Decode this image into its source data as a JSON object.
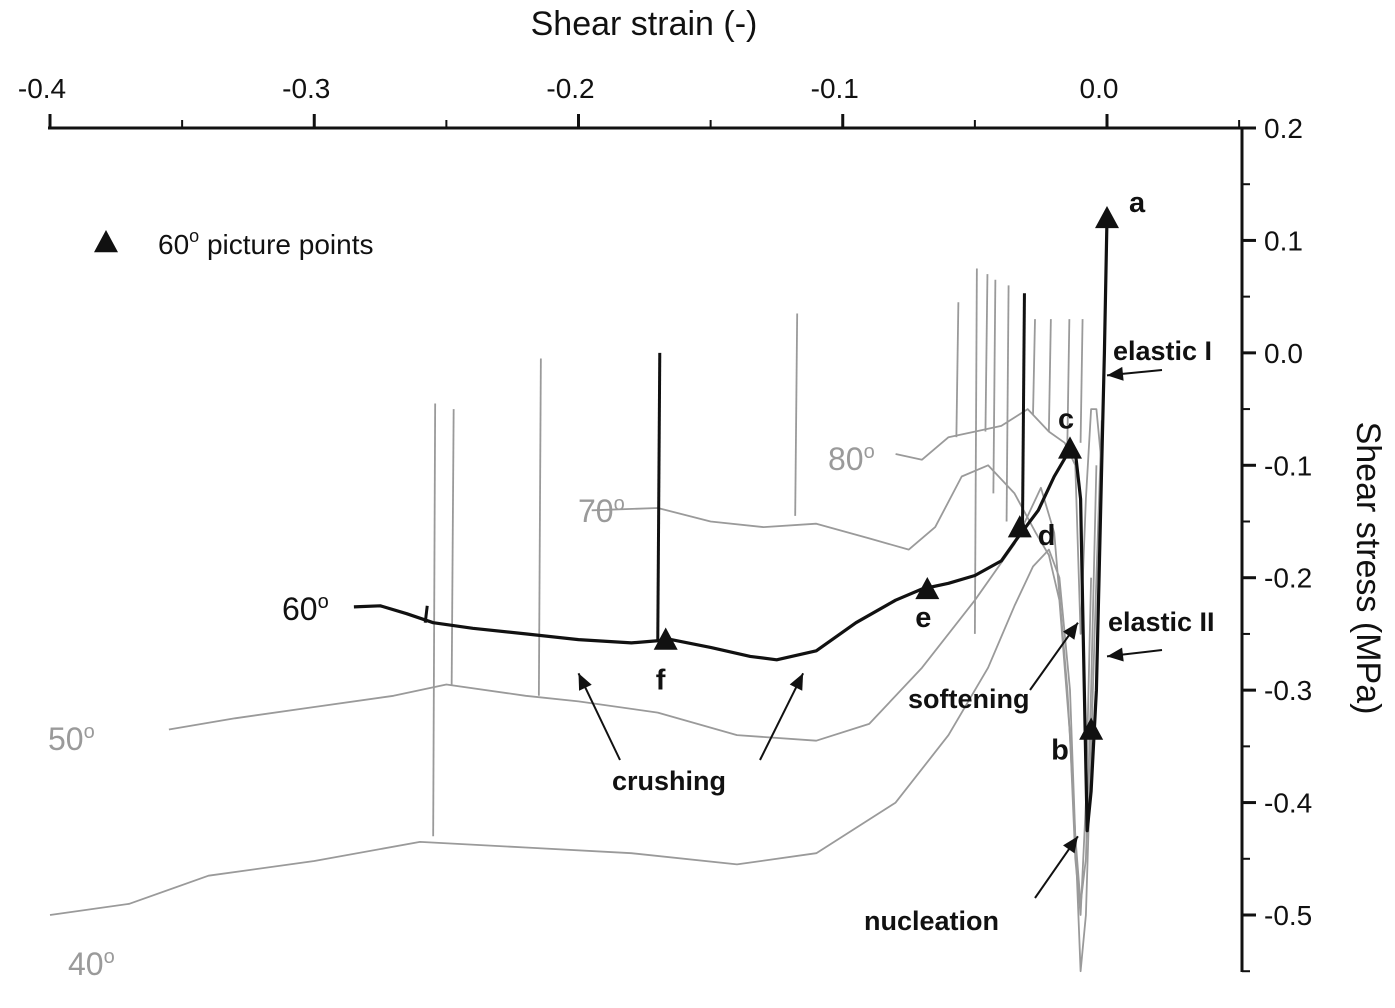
{
  "chart_data": {
    "type": "line",
    "title": "",
    "xlabel": "Shear strain (-)",
    "ylabel": "Shear stress (MPa)",
    "xlim": [
      -0.4,
      0.05
    ],
    "ylim": [
      -0.55,
      0.2
    ],
    "x_ticks": [
      "-0.4",
      "-0.3",
      "-0.2",
      "-0.1",
      "0.0"
    ],
    "y_ticks": [
      "0.2",
      "0.1",
      "0.0",
      "-0.1",
      "-0.2",
      "-0.3",
      "-0.4",
      "-0.5"
    ],
    "x_axis_position": "top",
    "y_axis_position": "right",
    "grid": false,
    "legend": {
      "position": "top-left",
      "entries": [
        {
          "marker": "triangle",
          "label_main": "60",
          "label_sup": "o",
          "label_rest": " picture points"
        }
      ]
    },
    "series": [
      {
        "name": "40°",
        "label_main": "40",
        "label_sup": "o",
        "color": "#9a9a9a",
        "points": [
          [
            -0.4,
            -0.5
          ],
          [
            -0.37,
            -0.49
          ],
          [
            -0.34,
            -0.465
          ],
          [
            -0.3,
            -0.452
          ],
          [
            -0.26,
            -0.435
          ],
          [
            -0.22,
            -0.44
          ],
          [
            -0.18,
            -0.445
          ],
          [
            -0.14,
            -0.455
          ],
          [
            -0.11,
            -0.445
          ],
          [
            -0.08,
            -0.4
          ],
          [
            -0.06,
            -0.34
          ],
          [
            -0.045,
            -0.28
          ],
          [
            -0.035,
            -0.225
          ],
          [
            -0.028,
            -0.19
          ],
          [
            -0.022,
            -0.175
          ],
          [
            -0.018,
            -0.2
          ],
          [
            -0.014,
            -0.3
          ],
          [
            -0.012,
            -0.43
          ],
          [
            -0.01,
            -0.55
          ],
          [
            -0.008,
            -0.5
          ],
          [
            -0.006,
            -0.35
          ],
          [
            -0.004,
            -0.2
          ],
          [
            -0.002,
            -0.06
          ]
        ],
        "spikes": [
          [
            -0.255,
            -0.43,
            -0.045
          ]
        ]
      },
      {
        "name": "50°",
        "label_main": "50",
        "label_sup": "o",
        "color": "#9a9a9a",
        "points": [
          [
            -0.355,
            -0.335
          ],
          [
            -0.33,
            -0.325
          ],
          [
            -0.3,
            -0.315
          ],
          [
            -0.27,
            -0.305
          ],
          [
            -0.25,
            -0.295
          ],
          [
            -0.22,
            -0.305
          ],
          [
            -0.2,
            -0.31
          ],
          [
            -0.17,
            -0.32
          ],
          [
            -0.14,
            -0.34
          ],
          [
            -0.11,
            -0.345
          ],
          [
            -0.09,
            -0.33
          ],
          [
            -0.07,
            -0.28
          ],
          [
            -0.05,
            -0.22
          ],
          [
            -0.035,
            -0.17
          ],
          [
            -0.025,
            -0.12
          ],
          [
            -0.02,
            -0.16
          ],
          [
            -0.015,
            -0.3
          ],
          [
            -0.012,
            -0.43
          ],
          [
            -0.01,
            -0.49
          ],
          [
            -0.008,
            -0.45
          ],
          [
            -0.006,
            -0.3
          ],
          [
            -0.004,
            -0.1
          ]
        ],
        "spikes": [
          [
            -0.215,
            -0.305,
            -0.005
          ],
          [
            -0.248,
            -0.295,
            -0.05
          ]
        ]
      },
      {
        "name": "70°",
        "label_main": "70",
        "label_sup": "o",
        "color": "#9a9a9a",
        "points": [
          [
            -0.195,
            -0.14
          ],
          [
            -0.17,
            -0.138
          ],
          [
            -0.15,
            -0.15
          ],
          [
            -0.13,
            -0.155
          ],
          [
            -0.11,
            -0.152
          ],
          [
            -0.09,
            -0.165
          ],
          [
            -0.075,
            -0.175
          ],
          [
            -0.065,
            -0.155
          ],
          [
            -0.055,
            -0.11
          ],
          [
            -0.045,
            -0.1
          ],
          [
            -0.035,
            -0.125
          ],
          [
            -0.027,
            -0.16
          ],
          [
            -0.022,
            -0.18
          ],
          [
            -0.018,
            -0.22
          ],
          [
            -0.014,
            -0.34
          ],
          [
            -0.012,
            -0.45
          ],
          [
            -0.01,
            -0.5
          ],
          [
            -0.008,
            -0.4
          ],
          [
            -0.006,
            -0.2
          ]
        ],
        "spikes": [
          [
            -0.05,
            -0.25,
            0.075
          ],
          [
            -0.043,
            -0.125,
            0.065
          ],
          [
            -0.038,
            -0.15,
            0.06
          ]
        ]
      },
      {
        "name": "80°",
        "label_main": "80",
        "label_sup": "o",
        "color": "#9a9a9a",
        "points": [
          [
            -0.08,
            -0.09
          ],
          [
            -0.07,
            -0.095
          ],
          [
            -0.06,
            -0.075
          ],
          [
            -0.05,
            -0.07
          ],
          [
            -0.04,
            -0.065
          ],
          [
            -0.03,
            -0.05
          ],
          [
            -0.022,
            -0.07
          ],
          [
            -0.016,
            -0.08
          ],
          [
            -0.012,
            -0.1
          ],
          [
            -0.01,
            -0.25
          ],
          [
            -0.008,
            -0.13
          ],
          [
            -0.006,
            -0.05
          ],
          [
            -0.004,
            -0.05
          ],
          [
            -0.002,
            -0.1
          ]
        ],
        "spikes": [
          [
            -0.118,
            -0.145,
            0.035
          ],
          [
            -0.057,
            -0.075,
            0.045
          ],
          [
            -0.046,
            -0.07,
            0.07
          ],
          [
            -0.028,
            -0.055,
            0.03
          ],
          [
            -0.022,
            -0.07,
            0.03
          ],
          [
            -0.015,
            -0.08,
            0.03
          ],
          [
            -0.01,
            -0.08,
            0.03
          ]
        ]
      },
      {
        "name": "60°",
        "label_main": "60",
        "label_sup": "o",
        "color": "#111111",
        "points": [
          [
            -0.285,
            -0.226
          ],
          [
            -0.275,
            -0.225
          ],
          [
            -0.265,
            -0.232
          ],
          [
            -0.255,
            -0.24
          ],
          [
            -0.24,
            -0.245
          ],
          [
            -0.22,
            -0.25
          ],
          [
            -0.2,
            -0.255
          ],
          [
            -0.18,
            -0.258
          ],
          [
            -0.165,
            -0.255
          ],
          [
            -0.15,
            -0.262
          ],
          [
            -0.135,
            -0.27
          ],
          [
            -0.125,
            -0.273
          ],
          [
            -0.11,
            -0.265
          ],
          [
            -0.095,
            -0.24
          ],
          [
            -0.08,
            -0.22
          ],
          [
            -0.07,
            -0.21
          ],
          [
            -0.06,
            -0.205
          ],
          [
            -0.05,
            -0.198
          ],
          [
            -0.04,
            -0.185
          ],
          [
            -0.034,
            -0.165
          ],
          [
            -0.026,
            -0.14
          ],
          [
            -0.02,
            -0.11
          ],
          [
            -0.015,
            -0.09
          ],
          [
            -0.012,
            -0.088
          ],
          [
            -0.01,
            -0.13
          ],
          [
            -0.009,
            -0.25
          ],
          [
            -0.008,
            -0.37
          ],
          [
            -0.0075,
            -0.425
          ],
          [
            -0.006,
            -0.39
          ],
          [
            -0.004,
            -0.3
          ],
          [
            -0.002,
            -0.1
          ],
          [
            -0.001,
            0.0
          ],
          [
            0.0,
            0.12
          ]
        ],
        "spikes": [
          [
            -0.17,
            -0.255,
            0.0
          ],
          [
            -0.032,
            -0.16,
            0.053
          ],
          [
            -0.258,
            -0.24,
            -0.225
          ]
        ]
      }
    ],
    "picture_points": [
      {
        "label": "a",
        "x": 0.0,
        "y": 0.12
      },
      {
        "label": "b",
        "x": -0.006,
        "y": -0.335
      },
      {
        "label": "c",
        "x": -0.014,
        "y": -0.085
      },
      {
        "label": "d",
        "x": -0.033,
        "y": -0.155
      },
      {
        "label": "e",
        "x": -0.068,
        "y": -0.21
      },
      {
        "label": "f",
        "x": -0.167,
        "y": -0.255
      }
    ],
    "annotations": [
      {
        "text": "elastic I",
        "arrow_to": [
          0.0,
          -0.02
        ]
      },
      {
        "text": "elastic II",
        "arrow_to": [
          0.0,
          -0.27
        ]
      },
      {
        "text": "softening",
        "arrow_to": [
          -0.011,
          -0.24
        ]
      },
      {
        "text": "crushing",
        "arrow_to": [
          -0.2,
          -0.285
        ]
      },
      {
        "text": "crushing",
        "arrow_to": [
          -0.115,
          -0.285
        ]
      },
      {
        "text": "nucleation",
        "arrow_to": [
          -0.011,
          -0.43
        ]
      }
    ]
  }
}
